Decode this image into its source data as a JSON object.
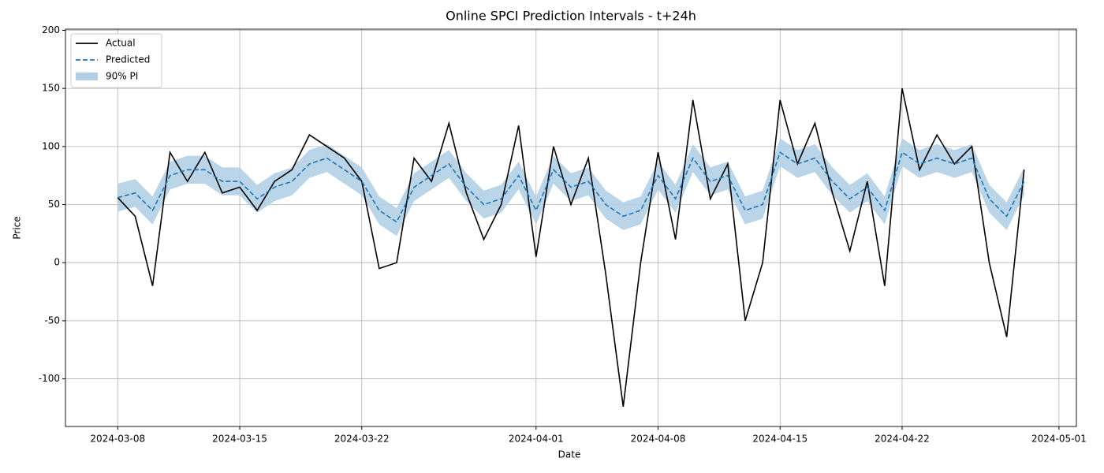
{
  "chart_data": {
    "type": "line",
    "title": "Online SPCI Prediction Intervals - t+24h",
    "x_label": "Date",
    "y_label": "Price",
    "x": [
      "2024-03-08",
      "2024-03-09",
      "2024-03-10",
      "2024-03-11",
      "2024-03-12",
      "2024-03-13",
      "2024-03-14",
      "2024-03-15",
      "2024-03-16",
      "2024-03-17",
      "2024-03-18",
      "2024-03-19",
      "2024-03-20",
      "2024-03-21",
      "2024-03-22",
      "2024-03-23",
      "2024-03-24",
      "2024-03-25",
      "2024-03-26",
      "2024-03-27",
      "2024-03-28",
      "2024-03-29",
      "2024-03-30",
      "2024-03-31",
      "2024-04-01",
      "2024-04-02",
      "2024-04-03",
      "2024-04-04",
      "2024-04-05",
      "2024-04-06",
      "2024-04-07",
      "2024-04-08",
      "2024-04-09",
      "2024-04-10",
      "2024-04-11",
      "2024-04-12",
      "2024-04-13",
      "2024-04-14",
      "2024-04-15",
      "2024-04-16",
      "2024-04-17",
      "2024-04-18",
      "2024-04-19",
      "2024-04-20",
      "2024-04-21",
      "2024-04-22",
      "2024-04-23",
      "2024-04-24",
      "2024-04-25",
      "2024-04-26",
      "2024-04-27",
      "2024-04-28",
      "2024-04-29"
    ],
    "series": [
      {
        "name": "Actual",
        "color": "#000000",
        "style": "solid",
        "values": [
          56,
          40,
          -20,
          95,
          70,
          95,
          60,
          65,
          45,
          70,
          80,
          110,
          100,
          90,
          70,
          -5,
          0,
          90,
          70,
          120,
          60,
          20,
          50,
          118,
          5,
          100,
          50,
          90,
          -10,
          -124,
          0,
          95,
          20,
          140,
          55,
          85,
          -50,
          0,
          140,
          85,
          120,
          60,
          10,
          70,
          -20,
          150,
          80,
          110,
          85,
          100,
          0,
          -64,
          80
        ]
      },
      {
        "name": "Predicted",
        "color": "#1f77b4",
        "style": "dashed",
        "values": [
          56,
          60,
          45,
          75,
          80,
          80,
          70,
          70,
          55,
          65,
          70,
          85,
          90,
          80,
          70,
          45,
          35,
          65,
          75,
          85,
          65,
          50,
          55,
          75,
          45,
          80,
          65,
          70,
          50,
          40,
          45,
          75,
          55,
          90,
          70,
          75,
          45,
          50,
          95,
          85,
          90,
          70,
          55,
          65,
          45,
          95,
          85,
          90,
          85,
          90,
          55,
          40,
          70
        ]
      },
      {
        "name": "90% PI",
        "color": "#b3cfe6",
        "style": "band",
        "lower": [
          44,
          48,
          33,
          63,
          68,
          68,
          58,
          58,
          43,
          53,
          58,
          73,
          78,
          68,
          58,
          33,
          23,
          53,
          63,
          73,
          53,
          38,
          43,
          63,
          33,
          68,
          53,
          58,
          38,
          28,
          33,
          63,
          43,
          78,
          58,
          63,
          33,
          38,
          83,
          73,
          78,
          58,
          43,
          53,
          33,
          83,
          73,
          78,
          73,
          78,
          43,
          28,
          58
        ],
        "upper": [
          68,
          72,
          57,
          87,
          92,
          92,
          82,
          82,
          67,
          77,
          82,
          97,
          102,
          92,
          82,
          57,
          47,
          77,
          87,
          97,
          77,
          62,
          67,
          87,
          57,
          92,
          77,
          82,
          62,
          52,
          57,
          87,
          67,
          102,
          82,
          87,
          57,
          62,
          107,
          97,
          102,
          82,
          67,
          77,
          57,
          107,
          97,
          102,
          97,
          102,
          67,
          52,
          82
        ]
      }
    ],
    "xlim": [
      "2024-03-05",
      "2024-05-02"
    ],
    "xticks": [
      "2024-03-08",
      "2024-03-15",
      "2024-03-22",
      "2024-04-01",
      "2024-04-08",
      "2024-04-15",
      "2024-04-22",
      "2024-05-01"
    ],
    "ylim": [
      -141,
      201
    ],
    "yticks": [
      -100,
      -50,
      0,
      50,
      100,
      150,
      200
    ],
    "grid": true,
    "legend": "upper-left"
  }
}
